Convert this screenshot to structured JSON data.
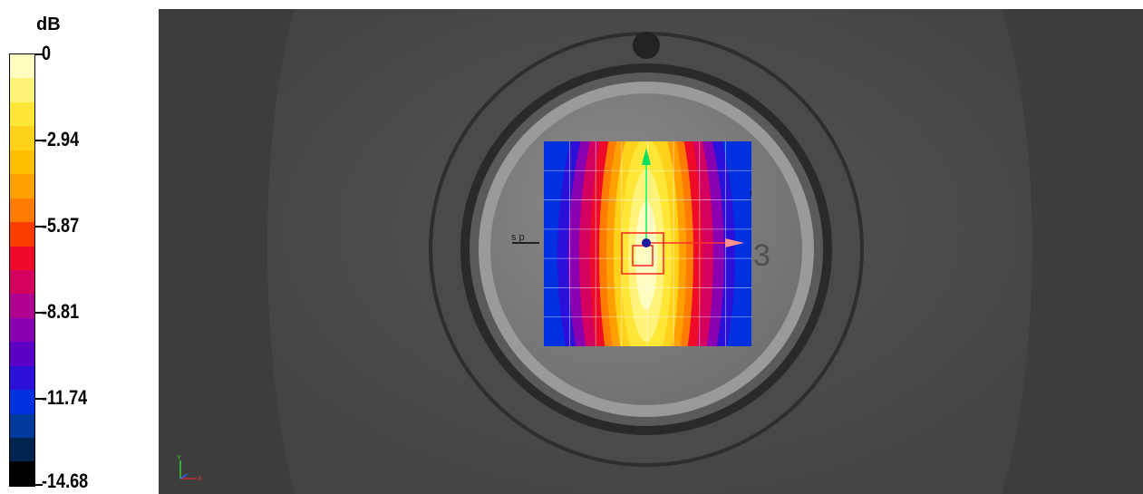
{
  "legend": {
    "unit": "dB",
    "ticks": [
      "0",
      "-2.94",
      "-5.87",
      "-8.81",
      "-11.74",
      "-14.68"
    ],
    "colors": [
      "#fffcc0",
      "#fff37a",
      "#ffe637",
      "#ffd21a",
      "#ffbe00",
      "#ffa000",
      "#ff7c00",
      "#ff3c00",
      "#ef0a2a",
      "#d30060",
      "#b00090",
      "#8a00b0",
      "#5c00c8",
      "#2a10d8",
      "#0030e0",
      "#003a9c",
      "#00244e",
      "#000000"
    ]
  },
  "viewport": {
    "background": "#3d3d3d",
    "dial_number": "3",
    "small_label": "s p"
  },
  "heatmap": {
    "rows": 7,
    "cols": 8,
    "colors": [
      "#000000",
      "#0030e0",
      "#8a00b0",
      "#ef0a2a",
      "#ff7c00",
      "#ffbe00",
      "#ffe637",
      "#fffcc0"
    ]
  },
  "axes": {
    "y_label": "Y",
    "x_label": "X"
  }
}
